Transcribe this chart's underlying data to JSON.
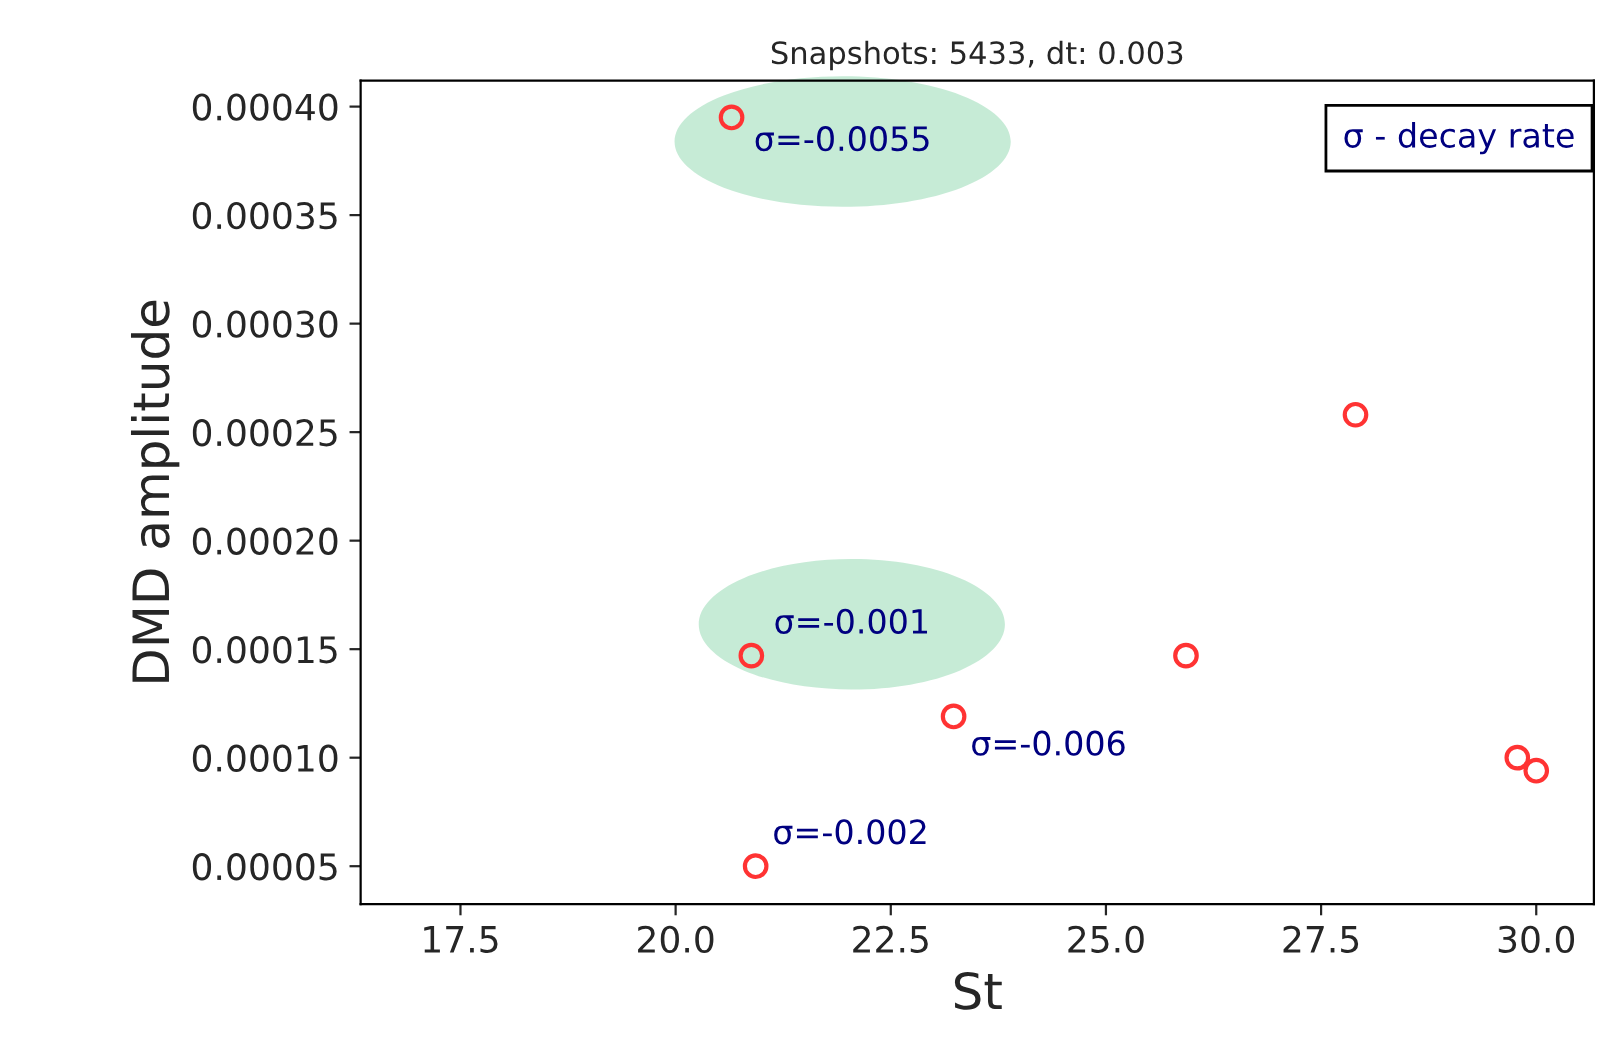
{
  "chart_data": {
    "type": "scatter",
    "title": "Snapshots: 5433, dt: 0.003",
    "xlabel": "St",
    "ylabel": "DMD amplitude",
    "series": [
      {
        "color": "#ff3333",
        "x": [
          20.65,
          20.88,
          20.93,
          23.23,
          25.93,
          27.9,
          29.78,
          30.0
        ],
        "values": [
          0.000395,
          0.000147,
          5e-05,
          0.000119,
          0.000147,
          0.000258,
          0.0001,
          9.4e-05
        ]
      }
    ],
    "xlim": [
      16.34,
      30.67
    ],
    "ylim": [
      3.25e-05,
      0.000412
    ],
    "xticks": [
      {
        "value": 17.5,
        "label": "17.5"
      },
      {
        "value": 20.0,
        "label": "20.0"
      },
      {
        "value": 22.5,
        "label": "22.5"
      },
      {
        "value": 25.0,
        "label": "25.0"
      },
      {
        "value": 27.5,
        "label": "27.5"
      },
      {
        "value": 30.0,
        "label": "30.0"
      }
    ],
    "yticks": [
      {
        "value": 5e-05,
        "label": "0.00005"
      },
      {
        "value": 0.0001,
        "label": "0.00010"
      },
      {
        "value": 0.00015,
        "label": "0.00015"
      },
      {
        "value": 0.0002,
        "label": "0.00020"
      },
      {
        "value": 0.00025,
        "label": "0.00025"
      },
      {
        "value": 0.0003,
        "label": "0.00030"
      },
      {
        "value": 0.00035,
        "label": "0.00035"
      },
      {
        "value": 0.0004,
        "label": "0.00040"
      }
    ],
    "annotations": [
      {
        "text": "σ=-0.0055",
        "x": 20.65,
        "y": 0.000395
      },
      {
        "text": "σ=-0.001",
        "x": 20.88,
        "y": 0.000147
      },
      {
        "text": "σ=-0.006",
        "x": 23.23,
        "y": 0.000119
      },
      {
        "text": "σ=-0.002",
        "x": 20.93,
        "y": 5e-05
      },
      "σ - decay rate"
    ],
    "marker": "circle",
    "grid": false
  }
}
